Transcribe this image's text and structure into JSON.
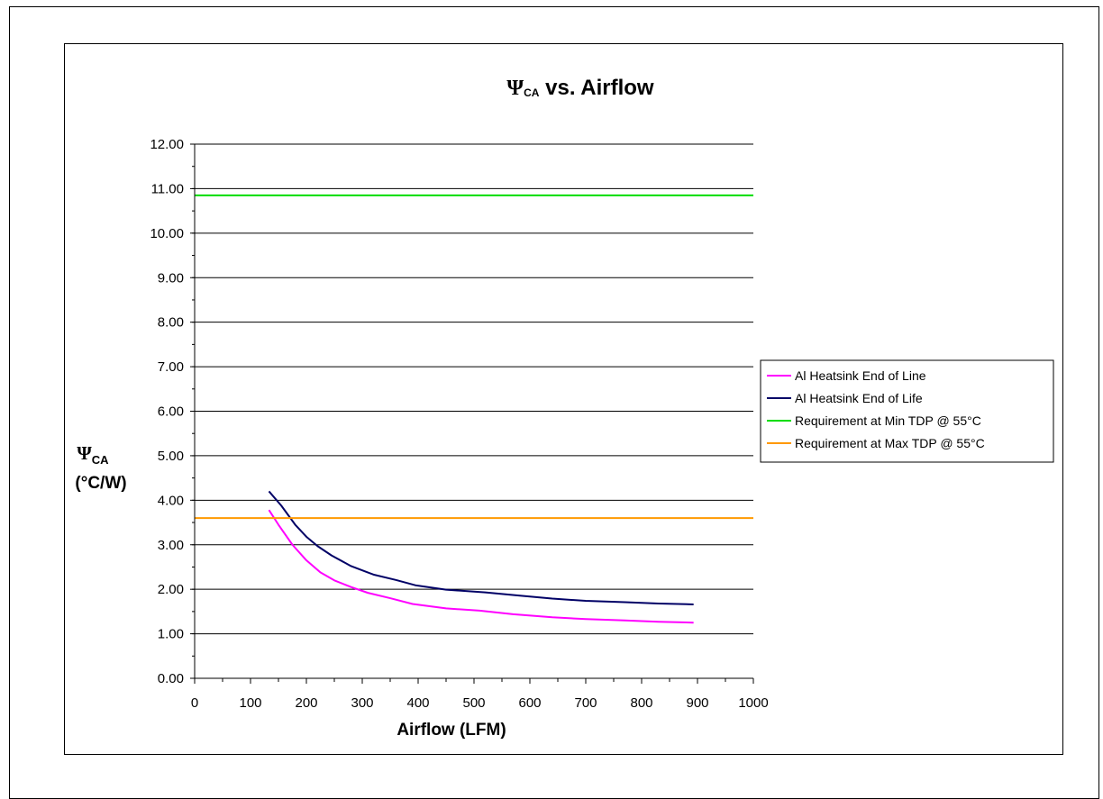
{
  "chart_data": {
    "type": "line",
    "title_symbol": "Ψ",
    "title_subscript": "CA",
    "title_rest": " vs. Airflow",
    "xlabel": "Airflow (LFM)",
    "ylabel_symbol": "Ψ",
    "ylabel_subscript": "CA",
    "ylabel_unit": "(°C/W)",
    "xlim": [
      0,
      1000
    ],
    "ylim": [
      0,
      12
    ],
    "x_ticks": [
      "0",
      "100",
      "200",
      "300",
      "400",
      "500",
      "600",
      "700",
      "800",
      "900",
      "1000"
    ],
    "y_ticks": [
      "0.00",
      "1.00",
      "2.00",
      "3.00",
      "4.00",
      "5.00",
      "6.00",
      "7.00",
      "8.00",
      "9.00",
      "10.00",
      "11.00",
      "12.00"
    ],
    "grid": "horizontal",
    "legend_position": "right",
    "series": [
      {
        "name": "Al Heatsink End of Line",
        "color": "#ff00ff",
        "x": [
          133,
          150,
          175,
          200,
          225,
          250,
          280,
          310,
          350,
          390,
          450,
          510,
          570,
          640,
          700,
          770,
          830,
          893
        ],
        "y": [
          3.78,
          3.45,
          3.0,
          2.65,
          2.38,
          2.2,
          2.05,
          1.92,
          1.8,
          1.67,
          1.57,
          1.52,
          1.44,
          1.37,
          1.33,
          1.3,
          1.27,
          1.25
        ]
      },
      {
        "name": "Al Heatsink End of Life",
        "color": "#000066",
        "x": [
          133,
          155,
          180,
          200,
          220,
          245,
          280,
          320,
          360,
          395,
          450,
          520,
          580,
          640,
          700,
          770,
          830,
          893
        ],
        "y": [
          4.2,
          3.88,
          3.45,
          3.18,
          2.97,
          2.76,
          2.52,
          2.33,
          2.21,
          2.09,
          1.99,
          1.93,
          1.86,
          1.79,
          1.74,
          1.71,
          1.68,
          1.66
        ]
      },
      {
        "name": "Requirement at Min TDP @ 55°C",
        "color": "#00dd00",
        "x": [
          0,
          1000
        ],
        "y": [
          10.85,
          10.85
        ]
      },
      {
        "name": "Requirement at Max TDP @ 55°C",
        "color": "#ff9900",
        "x": [
          0,
          1000
        ],
        "y": [
          3.6,
          3.6
        ]
      }
    ]
  }
}
